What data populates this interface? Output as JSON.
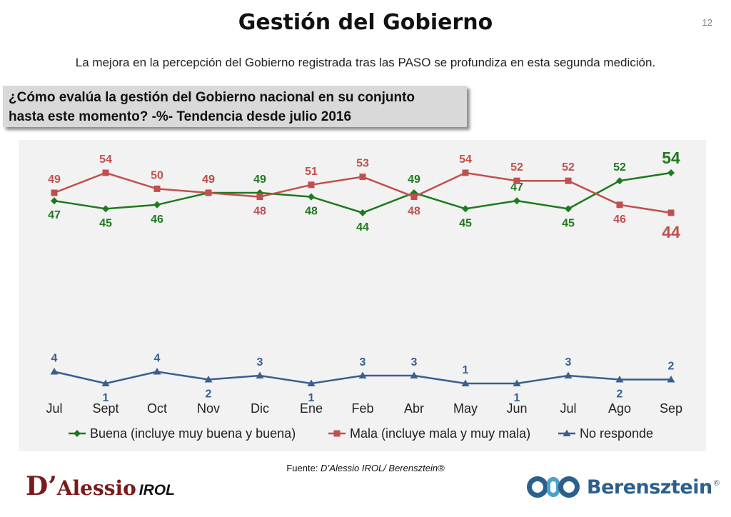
{
  "header": {
    "title": "Gestión del Gobierno",
    "slide_number": "12",
    "subtitle": "La mejora en la percepción del Gobierno registrada tras las PASO se profundiza en esta segunda medición.",
    "question_line1": "¿Cómo evalúa la gestión del Gobierno nacional en su conjunto",
    "question_line2": "hasta este momento? -%- Tendencia desde julio 2016"
  },
  "chart_data": {
    "type": "line",
    "categories": [
      "Jul",
      "Sept",
      "Oct",
      "Nov",
      "Dic",
      "Ene",
      "Feb",
      "Abr",
      "May",
      "Jun",
      "Jul",
      "Ago",
      "Sep"
    ],
    "series": [
      {
        "name": "Buena (incluye muy buena y buena)",
        "color": "#1e7a1e",
        "marker": "diamond",
        "values": [
          47,
          45,
          46,
          49,
          49,
          48,
          44,
          49,
          45,
          47,
          45,
          52,
          54
        ]
      },
      {
        "name": "Mala (incluye mala y muy mala)",
        "color": "#c0504d",
        "marker": "square",
        "values": [
          49,
          54,
          50,
          49,
          48,
          51,
          53,
          48,
          54,
          52,
          52,
          46,
          44
        ]
      },
      {
        "name": "No responde",
        "color": "#3a5f8f",
        "marker": "triangle",
        "values": [
          4,
          1,
          4,
          2,
          3,
          1,
          3,
          3,
          1,
          1,
          3,
          2,
          2
        ]
      }
    ],
    "ylim": [
      0,
      60
    ],
    "title": "",
    "xlabel": "",
    "ylabel": "",
    "legend_position": "bottom"
  },
  "footer": {
    "source_prefix": "Fuente: ",
    "source_italic": "D’Alessio IROL/ Berensztein®",
    "logo_left_d": "D’",
    "logo_left_name": "Alessio",
    "logo_left_suffix": "IROL",
    "logo_right_name": "Berensztein",
    "logo_right_reg": "®"
  }
}
